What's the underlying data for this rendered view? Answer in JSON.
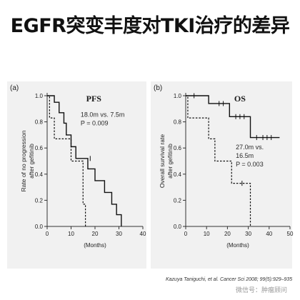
{
  "slide": {
    "title": "EGFR突变丰度对TKI治疗的差异",
    "citation": "Kazuya Taniguchi, et al. Cancer Sci 2008; 99(5):929–935",
    "watermark": "微信号：肿瘤顾问"
  },
  "colors": {
    "line": "#111111",
    "axis": "#333333",
    "panel_bg": "#f1f1f1",
    "text": "#222222"
  },
  "chart_data": [
    {
      "type": "line",
      "panel": "(a)",
      "title": "PFS",
      "annotation_lines": [
        "18.0m vs. 7.5m",
        "P = 0.009"
      ],
      "xlabel": "(Months)",
      "ylabel_lines": [
        "Rate of no progression",
        "after gefitinib"
      ],
      "xlim": [
        0,
        40
      ],
      "ylim": [
        0,
        1.0
      ],
      "xticks": [
        0,
        10,
        20,
        30,
        40
      ],
      "yticks": [
        0,
        0.2,
        0.4,
        0.6,
        0.8,
        1.0
      ],
      "ytick_labels": [
        "0.0",
        "0.2",
        "0.4",
        "0.6",
        "0.8",
        "1.0"
      ],
      "grid": false,
      "series": [
        {
          "style": "solid",
          "x": [
            0,
            3,
            5,
            7,
            8,
            10,
            12,
            14,
            17,
            20,
            24,
            27,
            29,
            31
          ],
          "y": [
            1.0,
            0.95,
            0.87,
            0.79,
            0.7,
            0.61,
            0.52,
            0.52,
            0.44,
            0.35,
            0.26,
            0.17,
            0.09,
            0.0
          ],
          "censored": [
            [
              18,
              0.52
            ]
          ]
        },
        {
          "style": "dashed",
          "x": [
            0,
            1,
            3,
            10,
            15,
            16
          ],
          "y": [
            1.0,
            0.83,
            0.67,
            0.5,
            0.17,
            0.0
          ],
          "censored": []
        }
      ]
    },
    {
      "type": "line",
      "panel": "(b)",
      "title": "OS",
      "annotation_lines": [
        "27.0m vs.",
        "16.5m",
        "P = 0.003"
      ],
      "xlabel": "(Months)",
      "ylabel_lines": [
        "Overall survival rate",
        "after gefitinib"
      ],
      "xlim": [
        0,
        50
      ],
      "ylim": [
        0,
        1.0
      ],
      "xticks": [
        0,
        10,
        20,
        30,
        40,
        50
      ],
      "yticks": [
        0,
        0.2,
        0.4,
        0.6,
        0.8,
        1.0
      ],
      "ytick_labels": [
        "0.0",
        "0.2",
        "0.4",
        "0.6",
        "0.8",
        "1.0"
      ],
      "grid": false,
      "series": [
        {
          "style": "solid",
          "x": [
            0,
            11,
            21,
            31,
            45
          ],
          "y": [
            1.0,
            0.94,
            0.84,
            0.68,
            0.68
          ],
          "censored": [
            [
              4,
              1.0
            ],
            [
              16,
              0.94
            ],
            [
              18,
              0.94
            ],
            [
              24,
              0.84
            ],
            [
              26,
              0.84
            ],
            [
              28,
              0.84
            ],
            [
              34,
              0.68
            ],
            [
              37,
              0.68
            ],
            [
              39,
              0.68
            ],
            [
              41,
              0.68
            ]
          ]
        },
        {
          "style": "dashed",
          "x": [
            0,
            1,
            11,
            14,
            22,
            31
          ],
          "y": [
            1.0,
            0.83,
            0.67,
            0.5,
            0.33,
            0.0
          ],
          "censored": [
            [
              27,
              0.33
            ]
          ]
        }
      ]
    }
  ]
}
